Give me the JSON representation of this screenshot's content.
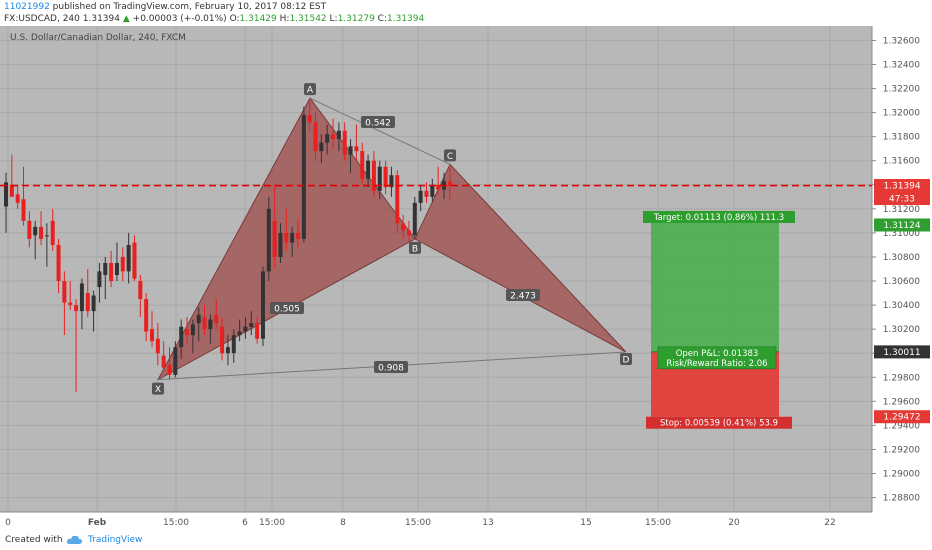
{
  "header": {
    "user": "11021992",
    "published": " published on TradingView.com, February 10, 2017 08:12 EST",
    "symbol": "FX:USDCAD, 240",
    "last": "1.31394",
    "change": "+0.00003 (+-0.01%)",
    "o_label": "O:",
    "o_value": "1.31429",
    "h_label": "H:",
    "h_value": "1.31542",
    "l_label": "L:",
    "l_value": "1.31279",
    "c_label": "C:",
    "c_value": "1.31394"
  },
  "chart": {
    "instrument_label": "U.S. Dollar/Canadian Dollar, 240, FXCM",
    "time_labels": [
      "0",
      "Feb",
      "15:00",
      "6",
      "15:00",
      "8",
      "15:00",
      "13",
      "15",
      "15:00",
      "20",
      "22"
    ],
    "price_badges": {
      "current": "1.31394",
      "countdown": "47:33",
      "target": "1.31124",
      "entry": "1.30011",
      "stop": "1.29472"
    },
    "colors": {
      "background": "#b8b8b8",
      "bull": "#333333",
      "bear": "#e82020",
      "pattern": "#a05050",
      "target_zone": "#4caf50",
      "stop_zone": "#e53935",
      "current_line": "#e00000"
    }
  },
  "chart_data": {
    "type": "candlestick",
    "y_axis_ticks": [
      "1.32600",
      "1.32400",
      "1.32200",
      "1.32000",
      "1.31800",
      "1.31600",
      "1.31400",
      "1.31200",
      "1.31000",
      "1.30800",
      "1.30600",
      "1.30400",
      "1.30200",
      "1.30000",
      "1.29800",
      "1.29600",
      "1.29400",
      "1.29200",
      "1.29000",
      "1.28800"
    ],
    "ylim": [
      1.2868,
      1.3272
    ],
    "current_price": 1.31394,
    "pattern": {
      "points": [
        {
          "label": "X",
          "price": 1.2978
        },
        {
          "label": "A",
          "price": 1.3212
        },
        {
          "label": "B",
          "price": 1.3095
        },
        {
          "label": "C",
          "price": 1.3157
        },
        {
          "label": "D",
          "price": 1.3001
        }
      ],
      "ratios": [
        {
          "id": "AB_XA",
          "value": "0.505"
        },
        {
          "id": "BC_AB",
          "value": "0.542"
        },
        {
          "id": "CD_BC",
          "value": "2.473"
        },
        {
          "id": "AD_XA",
          "value": "0.908"
        }
      ]
    },
    "position": {
      "entry": 1.30011,
      "target": 1.31124,
      "stop": 1.29472,
      "target_label": "Target: 0.01113 (0.86%) 111.3",
      "stop_label": "Stop: 0.00539 (0.41%) 53.9",
      "open_pl": "Open P&L: 0.01383",
      "risk_reward": "Risk/Reward Ratio: 2.06"
    },
    "candles": [
      {
        "o": 1.3122,
        "h": 1.315,
        "l": 1.31,
        "c": 1.3142
      },
      {
        "o": 1.314,
        "h": 1.3165,
        "l": 1.3132,
        "c": 1.313
      },
      {
        "o": 1.3132,
        "h": 1.314,
        "l": 1.312,
        "c": 1.3125
      },
      {
        "o": 1.3128,
        "h": 1.3155,
        "l": 1.3106,
        "c": 1.311
      },
      {
        "o": 1.311,
        "h": 1.3118,
        "l": 1.3088,
        "c": 1.3095
      },
      {
        "o": 1.3098,
        "h": 1.311,
        "l": 1.3078,
        "c": 1.3105
      },
      {
        "o": 1.3105,
        "h": 1.3118,
        "l": 1.309,
        "c": 1.3095
      },
      {
        "o": 1.3098,
        "h": 1.3108,
        "l": 1.3072,
        "c": 1.3098
      },
      {
        "o": 1.311,
        "h": 1.312,
        "l": 1.3085,
        "c": 1.309
      },
      {
        "o": 1.309,
        "h": 1.3095,
        "l": 1.305,
        "c": 1.306
      },
      {
        "o": 1.306,
        "h": 1.3068,
        "l": 1.3015,
        "c": 1.3042
      },
      {
        "o": 1.3042,
        "h": 1.306,
        "l": 1.3036,
        "c": 1.304
      },
      {
        "o": 1.304,
        "h": 1.3045,
        "l": 1.2968,
        "c": 1.3035
      },
      {
        "o": 1.3035,
        "h": 1.3062,
        "l": 1.302,
        "c": 1.3058
      },
      {
        "o": 1.305,
        "h": 1.307,
        "l": 1.303,
        "c": 1.3035
      },
      {
        "o": 1.3035,
        "h": 1.3052,
        "l": 1.3018,
        "c": 1.3048
      },
      {
        "o": 1.3055,
        "h": 1.3075,
        "l": 1.3042,
        "c": 1.3068
      },
      {
        "o": 1.3065,
        "h": 1.308,
        "l": 1.3045,
        "c": 1.3075
      },
      {
        "o": 1.3075,
        "h": 1.3085,
        "l": 1.3055,
        "c": 1.306
      },
      {
        "o": 1.3065,
        "h": 1.3092,
        "l": 1.306,
        "c": 1.3075
      },
      {
        "o": 1.308,
        "h": 1.3088,
        "l": 1.306,
        "c": 1.3068
      },
      {
        "o": 1.3068,
        "h": 1.31,
        "l": 1.3058,
        "c": 1.309
      },
      {
        "o": 1.3092,
        "h": 1.3098,
        "l": 1.306,
        "c": 1.3062
      },
      {
        "o": 1.306,
        "h": 1.3065,
        "l": 1.303,
        "c": 1.3045
      },
      {
        "o": 1.3045,
        "h": 1.305,
        "l": 1.301,
        "c": 1.3018
      },
      {
        "o": 1.302,
        "h": 1.3035,
        "l": 1.3005,
        "c": 1.301
      },
      {
        "o": 1.3012,
        "h": 1.3025,
        "l": 1.299,
        "c": 1.3
      },
      {
        "o": 1.2998,
        "h": 1.301,
        "l": 1.2985,
        "c": 1.2988
      },
      {
        "o": 1.299,
        "h": 1.3005,
        "l": 1.2978,
        "c": 1.2982
      },
      {
        "o": 1.2982,
        "h": 1.301,
        "l": 1.298,
        "c": 1.3005
      },
      {
        "o": 1.3005,
        "h": 1.3028,
        "l": 1.2995,
        "c": 1.3022
      },
      {
        "o": 1.302,
        "h": 1.303,
        "l": 1.3008,
        "c": 1.3015
      },
      {
        "o": 1.3015,
        "h": 1.3028,
        "l": 1.3,
        "c": 1.3024
      },
      {
        "o": 1.3025,
        "h": 1.3038,
        "l": 1.301,
        "c": 1.3032
      },
      {
        "o": 1.303,
        "h": 1.304,
        "l": 1.3015,
        "c": 1.302
      },
      {
        "o": 1.302,
        "h": 1.3032,
        "l": 1.3008,
        "c": 1.3028
      },
      {
        "o": 1.3032,
        "h": 1.3045,
        "l": 1.302,
        "c": 1.3025
      },
      {
        "o": 1.3022,
        "h": 1.303,
        "l": 1.2994,
        "c": 1.3
      },
      {
        "o": 1.3,
        "h": 1.3015,
        "l": 1.299,
        "c": 1.3005
      },
      {
        "o": 1.3,
        "h": 1.302,
        "l": 1.2992,
        "c": 1.3015
      },
      {
        "o": 1.3015,
        "h": 1.3028,
        "l": 1.301,
        "c": 1.3018
      },
      {
        "o": 1.3018,
        "h": 1.303,
        "l": 1.3012,
        "c": 1.3022
      },
      {
        "o": 1.3022,
        "h": 1.3035,
        "l": 1.3015,
        "c": 1.3025
      },
      {
        "o": 1.3025,
        "h": 1.303,
        "l": 1.3008,
        "c": 1.3012
      },
      {
        "o": 1.3012,
        "h": 1.3072,
        "l": 1.3006,
        "c": 1.3068
      },
      {
        "o": 1.3068,
        "h": 1.313,
        "l": 1.306,
        "c": 1.312
      },
      {
        "o": 1.311,
        "h": 1.314,
        "l": 1.307,
        "c": 1.308
      },
      {
        "o": 1.308,
        "h": 1.3108,
        "l": 1.3075,
        "c": 1.31
      },
      {
        "o": 1.31,
        "h": 1.312,
        "l": 1.3085,
        "c": 1.3092
      },
      {
        "o": 1.3092,
        "h": 1.3105,
        "l": 1.308,
        "c": 1.31
      },
      {
        "o": 1.31,
        "h": 1.3112,
        "l": 1.3088,
        "c": 1.3095
      },
      {
        "o": 1.3095,
        "h": 1.3205,
        "l": 1.3092,
        "c": 1.3198
      },
      {
        "o": 1.3198,
        "h": 1.3212,
        "l": 1.3185,
        "c": 1.3192
      },
      {
        "o": 1.3192,
        "h": 1.32,
        "l": 1.316,
        "c": 1.3168
      },
      {
        "o": 1.3168,
        "h": 1.3182,
        "l": 1.3158,
        "c": 1.3175
      },
      {
        "o": 1.3175,
        "h": 1.319,
        "l": 1.3165,
        "c": 1.3182
      },
      {
        "o": 1.3182,
        "h": 1.3195,
        "l": 1.317,
        "c": 1.3178
      },
      {
        "o": 1.3178,
        "h": 1.3192,
        "l": 1.3168,
        "c": 1.3185
      },
      {
        "o": 1.3185,
        "h": 1.3192,
        "l": 1.316,
        "c": 1.3165
      },
      {
        "o": 1.3165,
        "h": 1.3178,
        "l": 1.315,
        "c": 1.3172
      },
      {
        "o": 1.3172,
        "h": 1.319,
        "l": 1.316,
        "c": 1.3168
      },
      {
        "o": 1.3168,
        "h": 1.3175,
        "l": 1.314,
        "c": 1.3145
      },
      {
        "o": 1.3145,
        "h": 1.3165,
        "l": 1.3138,
        "c": 1.316
      },
      {
        "o": 1.316,
        "h": 1.3168,
        "l": 1.313,
        "c": 1.3135
      },
      {
        "o": 1.3135,
        "h": 1.316,
        "l": 1.3128,
        "c": 1.3155
      },
      {
        "o": 1.3155,
        "h": 1.316,
        "l": 1.3132,
        "c": 1.3138
      },
      {
        "o": 1.3138,
        "h": 1.3155,
        "l": 1.313,
        "c": 1.3148
      },
      {
        "o": 1.3148,
        "h": 1.3152,
        "l": 1.31,
        "c": 1.3108
      },
      {
        "o": 1.3108,
        "h": 1.3115,
        "l": 1.3095,
        "c": 1.3102
      },
      {
        "o": 1.3102,
        "h": 1.311,
        "l": 1.3093,
        "c": 1.3098
      },
      {
        "o": 1.3098,
        "h": 1.313,
        "l": 1.3096,
        "c": 1.3125
      },
      {
        "o": 1.3125,
        "h": 1.314,
        "l": 1.3118,
        "c": 1.3135
      },
      {
        "o": 1.3135,
        "h": 1.3142,
        "l": 1.3125,
        "c": 1.313
      },
      {
        "o": 1.313,
        "h": 1.3145,
        "l": 1.3126,
        "c": 1.314
      },
      {
        "o": 1.314,
        "h": 1.3155,
        "l": 1.3132,
        "c": 1.3136
      },
      {
        "o": 1.3136,
        "h": 1.315,
        "l": 1.3128,
        "c": 1.3143
      },
      {
        "o": 1.3143,
        "h": 1.3154,
        "l": 1.3128,
        "c": 1.3139
      }
    ]
  },
  "footer": {
    "created_with": "Created with",
    "brand": "TradingView"
  }
}
